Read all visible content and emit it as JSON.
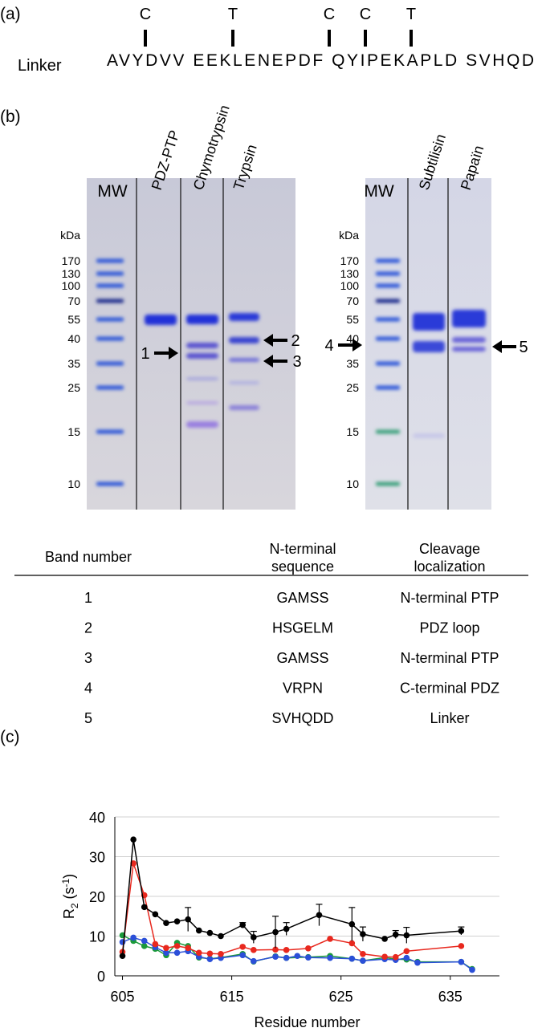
{
  "panel_a": {
    "label": "(a)",
    "row_label": "Linker",
    "sequence": "AVYDVV EEKLENEPDF QYIPEKAPLD SVHQD",
    "sites": [
      "C",
      "T",
      "C",
      "C",
      "T"
    ]
  },
  "panel_b": {
    "label": "(b)",
    "left_gel": {
      "lanes": [
        "MW",
        "PDZ-PTP",
        "Chymotrypsin",
        "Trypsin"
      ],
      "unit": "kDa",
      "markers": [
        "170",
        "130",
        "100",
        "70",
        "55",
        "40",
        "35",
        "25",
        "15",
        "10"
      ],
      "arrows": [
        "1",
        "2",
        "3"
      ]
    },
    "right_gel": {
      "lanes": [
        "MW",
        "Subtilisin",
        "Papaïn"
      ],
      "unit": "kDa",
      "markers": [
        "170",
        "130",
        "100",
        "70",
        "55",
        "40",
        "35",
        "25",
        "15",
        "10"
      ],
      "arrows": [
        "4",
        "5"
      ]
    }
  },
  "table": {
    "header": [
      "Band number",
      "N-terminal\nsequence",
      "Cleavage\nlocalization"
    ],
    "rows": [
      [
        "1",
        "GAMSS",
        "N-terminal PTP"
      ],
      [
        "2",
        "HSGELM",
        "PDZ loop"
      ],
      [
        "3",
        "GAMSS",
        "N-terminal PTP"
      ],
      [
        "4",
        "VRPN",
        "C-terminal PDZ"
      ],
      [
        "5",
        "SVHQDD",
        "Linker"
      ]
    ]
  },
  "chart_data": {
    "type": "line",
    "panel_label": "(c)",
    "x_label": "Residue number",
    "y_label": [
      "R",
      "2",
      " (s",
      "-1",
      ")"
    ],
    "xlim": [
      604.3,
      639.5
    ],
    "xticks": [
      605,
      615,
      625,
      635
    ],
    "ylim": [
      0,
      40
    ],
    "yticks": [
      0,
      10,
      20,
      30,
      40
    ],
    "grid": true,
    "series": [
      {
        "color": "#1a9a3a",
        "x": [
          605,
          606,
          607,
          608,
          609,
          610,
          611,
          612,
          613,
          614,
          616,
          617,
          619,
          620,
          622,
          624,
          626,
          627,
          629,
          630,
          631,
          632,
          636,
          637
        ],
        "values": [
          10.2,
          8.8,
          7.5,
          6.8,
          5.2,
          8.3,
          7.5,
          4.6,
          4.3,
          4.6,
          5.5,
          3.6,
          4.9,
          4.5,
          4.7,
          5.0,
          4.3,
          3.8,
          4.6,
          4.2,
          4.1,
          3.5,
          3.5,
          1.7
        ]
      },
      {
        "color": "#2b4fd8",
        "x": [
          605,
          606,
          607,
          608,
          609,
          610,
          611,
          612,
          613,
          614,
          616,
          617,
          619,
          620,
          621,
          622,
          624,
          626,
          627,
          629,
          630,
          631,
          632,
          636,
          637
        ],
        "values": [
          8.5,
          9.6,
          8.8,
          7.2,
          5.8,
          5.8,
          6.2,
          4.8,
          4.2,
          4.5,
          5.2,
          3.7,
          4.8,
          4.5,
          5.0,
          4.6,
          4.5,
          4.3,
          3.8,
          4.2,
          4.0,
          4.5,
          3.3,
          3.5,
          1.5
        ]
      },
      {
        "color": "#e8281e",
        "x": [
          605,
          606,
          607,
          608,
          609,
          610,
          611,
          612,
          613,
          614,
          616,
          617,
          619,
          620,
          622,
          624,
          626,
          627,
          629,
          630,
          631,
          636
        ],
        "values": [
          6.0,
          28.3,
          20.3,
          8.0,
          7.0,
          7.5,
          7.0,
          5.8,
          5.6,
          5.5,
          7.3,
          6.5,
          6.6,
          6.5,
          6.9,
          9.3,
          8.2,
          5.5,
          4.8,
          4.7,
          6.2,
          7.5
        ]
      },
      {
        "color": "#000000",
        "x": [
          605,
          606,
          607,
          608,
          609,
          610,
          611,
          612,
          613,
          614,
          616,
          617,
          619,
          620,
          623,
          626,
          627,
          629,
          630,
          631,
          636
        ],
        "values": [
          5.0,
          34.3,
          17.3,
          15.5,
          13.3,
          13.7,
          14.2,
          11.4,
          10.8,
          10.0,
          12.8,
          9.7,
          11.0,
          11.8,
          15.3,
          13.0,
          10.5,
          9.3,
          10.4,
          10.2,
          11.3
        ],
        "errors": [
          null,
          null,
          null,
          null,
          null,
          null,
          3.0,
          null,
          null,
          null,
          0.6,
          1.5,
          4.0,
          1.6,
          2.7,
          4.2,
          1.8,
          null,
          1.0,
          2.0,
          1.0
        ]
      }
    ]
  }
}
